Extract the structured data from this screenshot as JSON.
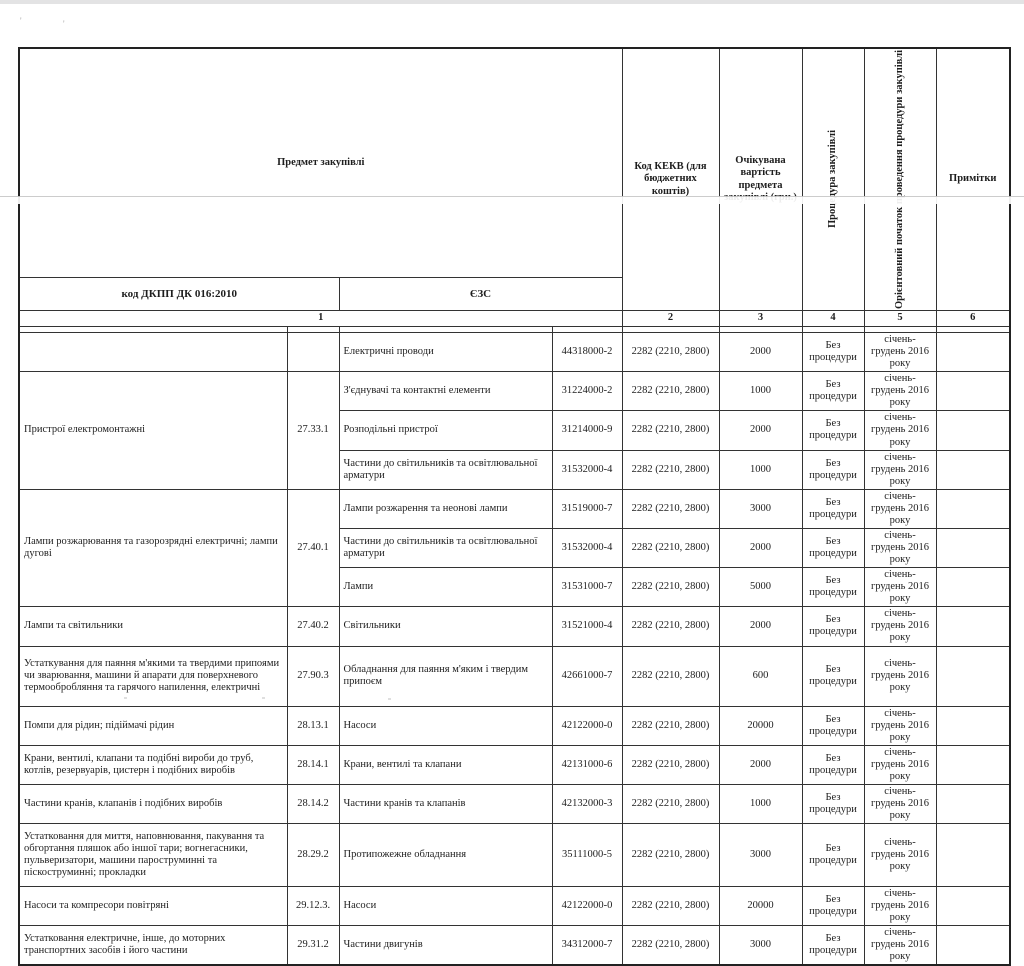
{
  "page": {
    "type": "scanned procurement plan table (Ukrainian)"
  },
  "table": {
    "header": {
      "predmet": "Предмет закупівлі",
      "dkpp": "код ДКПП ДК 016:2010",
      "ezs": "ЄЗС",
      "kekv": "Код КЕКВ (для бюджетних коштів)",
      "expected_cost": "Очікувана вартість предмета закупівлі (грн.)",
      "procedure": "Процедура закупівлі",
      "start": "Орієнтовний початок проведення процедури закупівлі",
      "notes": "Примітки",
      "col_numbers": [
        "1",
        "2",
        "3",
        "4",
        "5",
        "6"
      ]
    },
    "common": {
      "kekv_value": "2282 (2210, 2800)",
      "procedure_value": "Без процедури",
      "period_value": "січень-грудень 2016 року"
    },
    "groups": [
      {
        "name": "",
        "code": "",
        "rows": [
          {
            "ezs_name": "Електричні проводи",
            "ezs_code": "44318000-2",
            "kekv": "2282 (2210, 2800)",
            "cost": "2000",
            "procedure": "Без процедури",
            "period": "січень-грудень 2016 року",
            "notes": ""
          }
        ]
      },
      {
        "name": "Пристрої електромонтажні",
        "code": "27.33.1",
        "rows": [
          {
            "ezs_name": "З'єднувачі та контактні елементи",
            "ezs_code": "31224000-2",
            "kekv": "2282 (2210, 2800)",
            "cost": "1000",
            "procedure": "Без процедури",
            "period": "січень-грудень 2016 року",
            "notes": ""
          },
          {
            "ezs_name": "Розподільні пристрої",
            "ezs_code": "31214000-9",
            "kekv": "2282 (2210, 2800)",
            "cost": "2000",
            "procedure": "Без процедури",
            "period": "січень-грудень 2016 року",
            "notes": ""
          },
          {
            "ezs_name": "Частини до світильників та освітлювальної арматури",
            "ezs_code": "31532000-4",
            "kekv": "2282 (2210, 2800)",
            "cost": "1000",
            "procedure": "Без процедури",
            "period": "січень-грудень 2016 року",
            "notes": ""
          }
        ]
      },
      {
        "name": "Лампи розжарювання та газорозрядні електричні; лампи дугові",
        "code": "27.40.1",
        "rows": [
          {
            "ezs_name": "Лампи розжарення та неонові лампи",
            "ezs_code": "31519000-7",
            "kekv": "2282 (2210, 2800)",
            "cost": "3000",
            "procedure": "Без процедури",
            "period": "січень-грудень 2016 року",
            "notes": ""
          },
          {
            "ezs_name": "Частини до світильників та освітлювальної арматури",
            "ezs_code": "31532000-4",
            "kekv": "2282 (2210, 2800)",
            "cost": "2000",
            "procedure": "Без процедури",
            "period": "січень-грудень 2016 року",
            "notes": ""
          },
          {
            "ezs_name": "Лампи",
            "ezs_code": "31531000-7",
            "kekv": "2282 (2210, 2800)",
            "cost": "5000",
            "procedure": "Без процедури",
            "period": "січень-грудень 2016 року",
            "notes": ""
          }
        ]
      },
      {
        "name": "Лампи та світильники",
        "code": "27.40.2",
        "rows": [
          {
            "ezs_name": "Світильники",
            "ezs_code": "31521000-4",
            "kekv": "2282 (2210, 2800)",
            "cost": "2000",
            "procedure": "Без процедури",
            "period": "січень-грудень 2016 року",
            "notes": ""
          }
        ]
      },
      {
        "name": "Устаткування для паяння м'якими та твердими припоями чи зварювання, машини й апарати для поверхневого термообробляння та гарячого напилення, електричні",
        "code": "27.90.3",
        "rows": [
          {
            "ezs_name": "Обладнання для паяння м'яким і твердим припоєм",
            "ezs_code": "42661000-7",
            "kekv": "2282 (2210, 2800)",
            "cost": "600",
            "procedure": "Без процедури",
            "period": "січень-грудень 2016 року",
            "notes": ""
          }
        ]
      },
      {
        "name": "Помпи для рідин; підіймачі рідин",
        "code": "28.13.1",
        "rows": [
          {
            "ezs_name": "Насоси",
            "ezs_code": "42122000-0",
            "kekv": "2282 (2210, 2800)",
            "cost": "20000",
            "procedure": "Без процедури",
            "period": "січень-грудень 2016 року",
            "notes": ""
          }
        ]
      },
      {
        "name": "Крани, вентилі, клапани та подібні вироби до труб, котлів, резервуарів, цистерн і подібних виробів",
        "code": "28.14.1",
        "rows": [
          {
            "ezs_name": "Крани, вентилі та клапани",
            "ezs_code": "42131000-6",
            "kekv": "2282 (2210, 2800)",
            "cost": "2000",
            "procedure": "Без процедури",
            "period": "січень-грудень 2016 року",
            "notes": ""
          }
        ]
      },
      {
        "name": "Частини кранів, клапанів і подібних виробів",
        "code": "28.14.2",
        "rows": [
          {
            "ezs_name": "Частини кранів та клапанів",
            "ezs_code": "42132000-3",
            "kekv": "2282 (2210, 2800)",
            "cost": "1000",
            "procedure": "Без процедури",
            "period": "січень-грудень 2016 року",
            "notes": ""
          }
        ]
      },
      {
        "name": "Устатковання для миття, наповнювання, пакування та обгортання пляшок або іншої тари; вогнегасники, пульверизатори, машини пароструминні та піскоструминні; прокладки",
        "code": "28.29.2",
        "rows": [
          {
            "ezs_name": "Протипожежне обладнання",
            "ezs_code": "35111000-5",
            "kekv": "2282 (2210, 2800)",
            "cost": "3000",
            "procedure": "Без процедури",
            "period": "січень-грудень 2016 року",
            "notes": ""
          }
        ]
      },
      {
        "name": "Насоси та компресори повітряні",
        "code": "29.12.3.",
        "rows": [
          {
            "ezs_name": "Насоси",
            "ezs_code": "42122000-0",
            "kekv": "2282 (2210, 2800)",
            "cost": "20000",
            "procedure": "Без процедури",
            "period": "січень-грудень 2016 року",
            "notes": ""
          }
        ]
      },
      {
        "name": "Устатковання електричне, інше, до моторних транспортних засобів і його частини",
        "code": "29.31.2",
        "rows": [
          {
            "ezs_name": "Частини двигунів",
            "ezs_code": "34312000-7",
            "kekv": "2282 (2210, 2800)",
            "cost": "3000",
            "procedure": "Без процедури",
            "period": "січень-грудень 2016 року",
            "notes": ""
          }
        ]
      }
    ]
  }
}
